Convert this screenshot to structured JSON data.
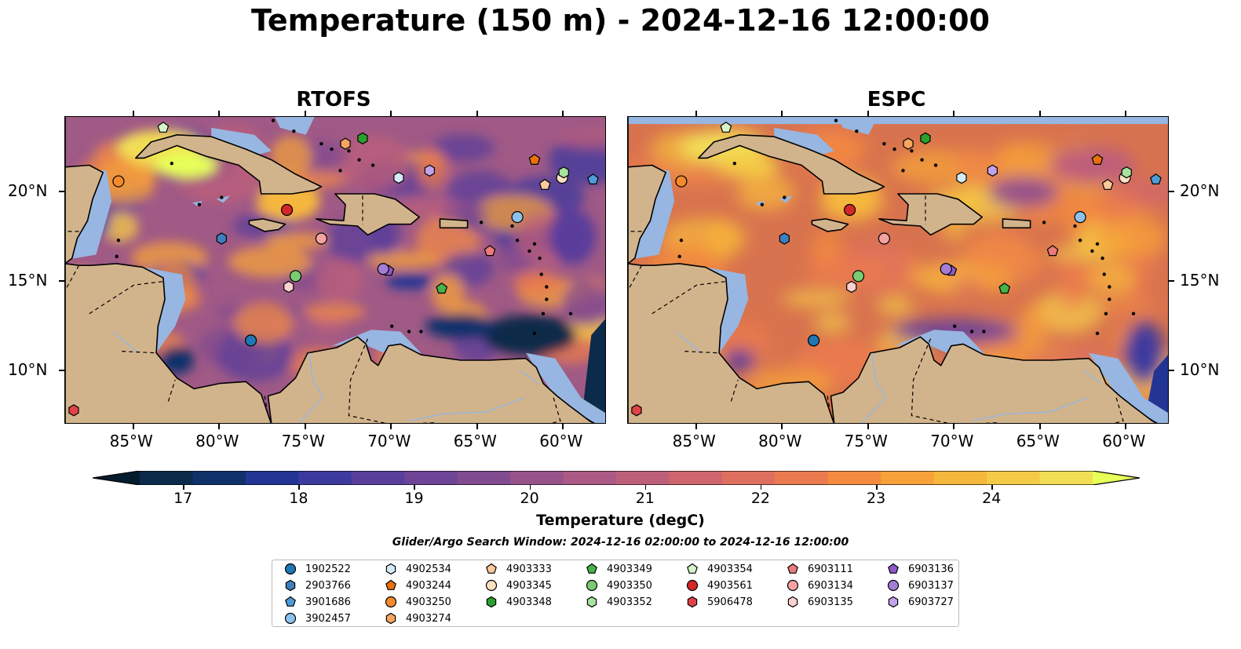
{
  "title": "Temperature (150 m) - 2024-12-16 12:00:00",
  "panels": [
    {
      "name": "rtofs",
      "title": "RTOFS",
      "style": "rtofs"
    },
    {
      "name": "espc",
      "title": "ESPC",
      "style": "espc"
    }
  ],
  "map": {
    "lon_range": [
      -89,
      -57.5
    ],
    "lat_range": [
      7,
      24.2
    ],
    "lon_ticks": [
      -85,
      -80,
      -75,
      -70,
      -65,
      -60
    ],
    "lon_tick_labels": [
      "85°W",
      "80°W",
      "75°W",
      "70°W",
      "65°W",
      "60°W"
    ],
    "lat_ticks": [
      10,
      15,
      20
    ],
    "lat_tick_labels": [
      "10°N",
      "15°N",
      "20°N"
    ],
    "colors": {
      "land": "#d2b48c",
      "shallow_water": "#97b6e1",
      "deep_cold": "#08243a",
      "warm": "#f08a45",
      "hot": "#f8d35a",
      "cool": "#5b3a94"
    }
  },
  "colorbar": {
    "label": "Temperature (degC)",
    "min": 16.625,
    "max": 24.875,
    "tick_values": [
      17,
      18,
      19,
      20,
      21,
      22,
      23,
      24
    ],
    "tick_labels": [
      "17",
      "18",
      "19",
      "20",
      "21",
      "22",
      "23",
      "24"
    ],
    "colors": [
      "#0c2a4a",
      "#10306a",
      "#223594",
      "#3d3a9e",
      "#5a3e9b",
      "#6e4496",
      "#814b8f",
      "#975289",
      "#aa5a84",
      "#be5f7a",
      "#cf666e",
      "#de6f5f",
      "#eb7b4e",
      "#f48c3f",
      "#f6a13a",
      "#f5b73c",
      "#f4cb46",
      "#f2de55"
    ],
    "extend_low": "#041c2e",
    "extend_high": "#e7ff59"
  },
  "search_window": "Glider/Argo Search Window: 2024-12-16 02:00:00 to 2024-12-16 12:00:00",
  "floats": [
    {
      "id": "1902522",
      "marker": "circle",
      "color": "#1f77b4",
      "lon": -78.2,
      "lat": 11.7
    },
    {
      "id": "2903766",
      "marker": "hexagon",
      "color": "#3f7fbf",
      "lon": -79.9,
      "lat": 17.4
    },
    {
      "id": "3901686",
      "marker": "pentagon",
      "color": "#4f9bd9",
      "lon": -58.3,
      "lat": 20.7
    },
    {
      "id": "3902457",
      "marker": "circle",
      "color": "#8dc2ec",
      "lon": -62.7,
      "lat": 18.6
    },
    {
      "id": "4902534",
      "marker": "hexagon",
      "color": "#d4eaf7",
      "lon": -69.6,
      "lat": 20.8
    },
    {
      "id": "4903244",
      "marker": "pentagon",
      "color": "#e8710c",
      "lon": -61.7,
      "lat": 21.8
    },
    {
      "id": "4903250",
      "marker": "circle",
      "color": "#f58a2c",
      "lon": -85.9,
      "lat": 20.6
    },
    {
      "id": "4903274",
      "marker": "hexagon",
      "color": "#f8a560",
      "lon": -72.7,
      "lat": 22.7
    },
    {
      "id": "4903333",
      "marker": "pentagon",
      "color": "#fbc99a",
      "lon": -61.1,
      "lat": 20.4
    },
    {
      "id": "4903345",
      "marker": "circle",
      "color": "#fde0c2",
      "lon": -60.1,
      "lat": 20.8
    },
    {
      "id": "4903348",
      "marker": "hexagon",
      "color": "#2ca02c",
      "lon": -71.7,
      "lat": 23.0
    },
    {
      "id": "4903349",
      "marker": "pentagon",
      "color": "#48b348",
      "lon": -67.1,
      "lat": 14.6
    },
    {
      "id": "4903350",
      "marker": "circle",
      "color": "#79cc72",
      "lon": -75.6,
      "lat": 15.3
    },
    {
      "id": "4903352",
      "marker": "hexagon",
      "color": "#a8e2a0",
      "lon": -60.0,
      "lat": 21.1
    },
    {
      "id": "4903354",
      "marker": "pentagon",
      "color": "#d5f5c8",
      "lon": -83.3,
      "lat": 23.6
    },
    {
      "id": "4903561",
      "marker": "circle",
      "color": "#d62728",
      "lon": -76.1,
      "lat": 19.0
    },
    {
      "id": "5906478",
      "marker": "hexagon",
      "color": "#e04347",
      "lon": -88.5,
      "lat": 7.8
    },
    {
      "id": "6903111",
      "marker": "pentagon",
      "color": "#ec7a7a",
      "lon": -64.3,
      "lat": 16.7
    },
    {
      "id": "6903134",
      "marker": "circle",
      "color": "#f5a2a2",
      "lon": -74.1,
      "lat": 17.4
    },
    {
      "id": "6903135",
      "marker": "hexagon",
      "color": "#fbd0cf",
      "lon": -76.0,
      "lat": 14.7
    },
    {
      "id": "6903136",
      "marker": "pentagon",
      "color": "#8e5ac7",
      "lon": -70.2,
      "lat": 15.6
    },
    {
      "id": "6903137",
      "marker": "circle",
      "color": "#a57dd6",
      "lon": -70.5,
      "lat": 15.7
    },
    {
      "id": "6903727",
      "marker": "hexagon",
      "color": "#c3a2eb",
      "lon": -67.8,
      "lat": 21.2
    }
  ]
}
